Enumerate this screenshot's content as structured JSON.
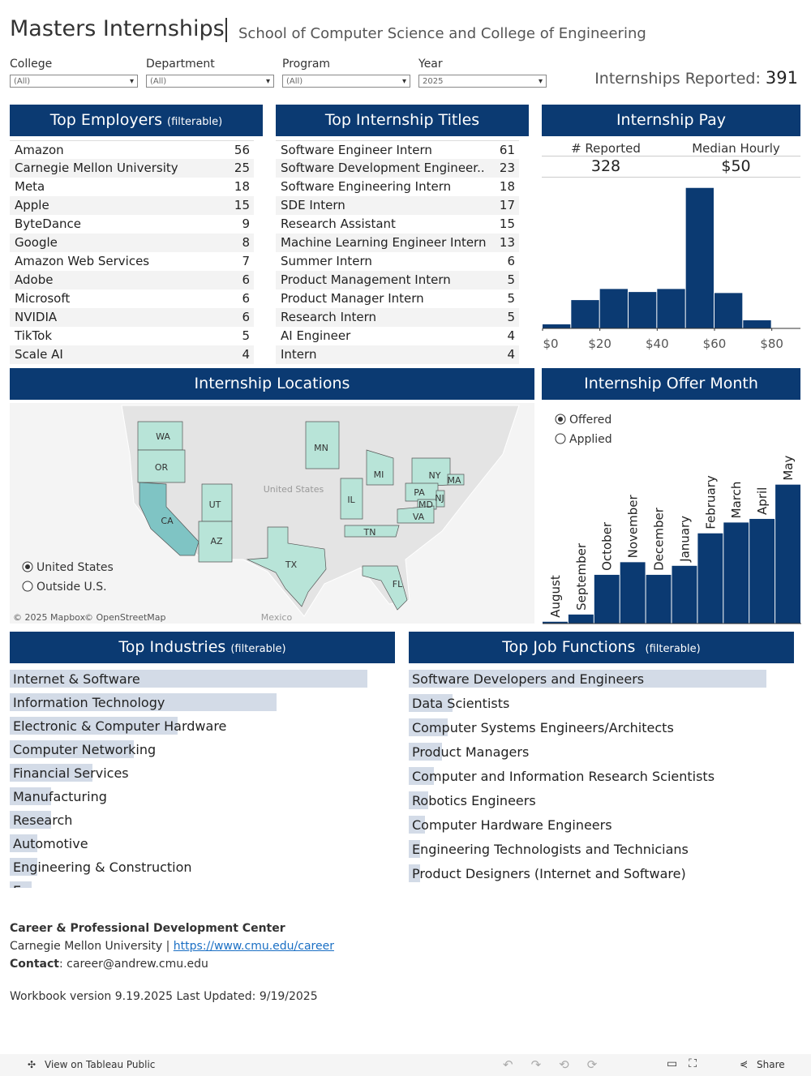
{
  "header": {
    "title": "Masters Internships",
    "subtitle": "School of Computer Science and College of Engineering"
  },
  "filters": [
    {
      "label": "College",
      "value": "(All)"
    },
    {
      "label": "Department",
      "value": "(All)"
    },
    {
      "label": "Program",
      "value": "(All)"
    },
    {
      "label": "Year",
      "value": "2025"
    }
  ],
  "reported": {
    "label": "Internships Reported:",
    "value": 391
  },
  "employers": {
    "title": "Top Employers",
    "note": "(filterable)",
    "rows": [
      {
        "name": "Amazon",
        "count": 56
      },
      {
        "name": "Carnegie Mellon University",
        "count": 25
      },
      {
        "name": "Meta",
        "count": 18
      },
      {
        "name": "Apple",
        "count": 15
      },
      {
        "name": "ByteDance",
        "count": 9
      },
      {
        "name": "Google",
        "count": 8
      },
      {
        "name": "Amazon Web Services",
        "count": 7
      },
      {
        "name": "Adobe",
        "count": 6
      },
      {
        "name": "Microsoft",
        "count": 6
      },
      {
        "name": "NVIDIA",
        "count": 6
      },
      {
        "name": "TikTok",
        "count": 5
      },
      {
        "name": "Scale AI",
        "count": 4
      }
    ]
  },
  "titles": {
    "title": "Top Internship Titles",
    "rows": [
      {
        "name": "Software Engineer Intern",
        "count": 61
      },
      {
        "name": "Software Development Engineer..",
        "count": 23
      },
      {
        "name": "Software Engineering Intern",
        "count": 18
      },
      {
        "name": "SDE Intern",
        "count": 17
      },
      {
        "name": "Research Assistant",
        "count": 15
      },
      {
        "name": "Machine Learning Engineer Intern",
        "count": 13
      },
      {
        "name": "Summer Intern",
        "count": 6
      },
      {
        "name": "Product Management Intern",
        "count": 5
      },
      {
        "name": "Product Manager Intern",
        "count": 5
      },
      {
        "name": "Research Intern",
        "count": 5
      },
      {
        "name": "AI Engineer",
        "count": 4
      },
      {
        "name": "Intern",
        "count": 4
      }
    ]
  },
  "pay": {
    "title": "Internship Pay",
    "reported_label": "# Reported",
    "reported": 328,
    "median_label": "Median Hourly",
    "median": "$50"
  },
  "map": {
    "title": "Internship Locations",
    "states": [
      "WA",
      "OR",
      "CA",
      "UT",
      "AZ",
      "TX",
      "MN",
      "MI",
      "IL",
      "TN",
      "NY",
      "PA",
      "NJ",
      "MD",
      "VA",
      "MA",
      "FL"
    ],
    "country_label": "United States",
    "neighbor_label": "Mexico",
    "options": [
      "United States",
      "Outside U.S."
    ],
    "selected": 0,
    "credits": [
      "© 2025 Mapbox",
      "© OpenStreetMap"
    ]
  },
  "chart_data": [
    {
      "type": "histogram",
      "bins": [
        0,
        10,
        20,
        30,
        40,
        50,
        60,
        70,
        80
      ],
      "counts": [
        4,
        28,
        39,
        36,
        39,
        139,
        35,
        8
      ],
      "xlim": [
        0,
        90
      ],
      "ylim": [
        0,
        142
      ],
      "xticks": [
        {
          "value": 0,
          "label": "$0"
        },
        {
          "value": 20,
          "label": "$20"
        },
        {
          "value": 40,
          "label": "$40"
        },
        {
          "value": 60,
          "label": "$60"
        },
        {
          "value": 80,
          "label": "$80"
        }
      ],
      "color": "#0b3a72"
    },
    {
      "type": "bar",
      "title": "Internship Offer Month",
      "options": [
        "Offered",
        "Applied"
      ],
      "selected": 0,
      "categories": [
        "August",
        "September",
        "October",
        "November",
        "December",
        "January",
        "February",
        "March",
        "April",
        "May"
      ],
      "values": [
        1,
        5,
        27,
        34,
        27,
        32,
        50,
        56,
        58,
        77
      ],
      "ylim": [
        0,
        80
      ],
      "color": "#0b3a72"
    },
    {
      "type": "hbar",
      "title": "Top Industries",
      "note": "(filterable)",
      "categories": [
        "Internet & Software",
        "Information Technology",
        "Electronic & Computer Hardware",
        "Computer Networking",
        "Financial Services",
        "Manufacturing",
        "Research",
        "Automotive",
        "Engineering & Construction",
        "Energy"
      ],
      "values": [
        130,
        97,
        61,
        45,
        30,
        15,
        15,
        10,
        10,
        8
      ],
      "xlim": [
        0,
        140
      ],
      "color": "#d3dbe7"
    },
    {
      "type": "hbar",
      "title": "Top Job Functions",
      "note": "(filterable)",
      "categories": [
        "Software Developers and Engineers",
        "Data Scientists",
        "Computer Systems Engineers/Architects",
        "Product Managers",
        "Computer and Information Research Scientists",
        "Robotics Engineers",
        "Computer Hardware Engineers",
        "Engineering Technologists and Technicians",
        "Product Designers (Internet and Software)"
      ],
      "values": [
        130,
        16,
        14,
        12,
        9,
        7,
        6,
        4,
        4
      ],
      "xlim": [
        0,
        140
      ],
      "color": "#d3dbe7"
    }
  ],
  "footer": {
    "org": "Career & Professional Development Center",
    "university": "Carnegie Mellon University |",
    "link": "https://www.cmu.edu/career",
    "contact_label": "Contact",
    "contact": ": career@andrew.cmu.edu",
    "version": "Workbook version 9.19.2025 Last Updated: 9/19/2025"
  },
  "toolbar": {
    "view": "View on Tableau Public",
    "share": "Share"
  }
}
